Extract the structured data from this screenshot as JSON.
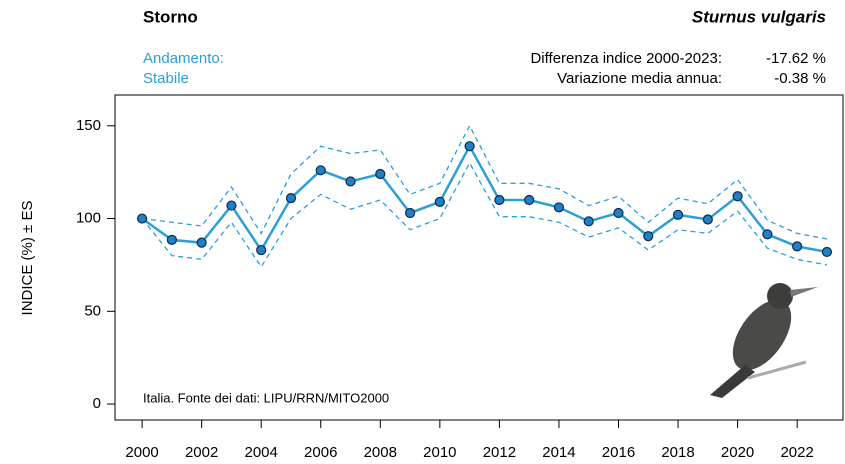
{
  "chart_data": {
    "type": "line",
    "title": "Storno",
    "species": "Sturnus vulgaris",
    "trend_label": "Andamento:",
    "trend": "Stabile",
    "stats": [
      {
        "label": "Differenza indice 2000-2023:",
        "value": "-17.62 %"
      },
      {
        "label": "Variazione media annua:",
        "value": "-0.38 %"
      }
    ],
    "y_label": "INDICE (%) ± ES",
    "annotation": "Italia. Fonte dei dati: LIPU/RRN/MITO2000",
    "x": [
      2000,
      2001,
      2002,
      2003,
      2004,
      2005,
      2006,
      2007,
      2008,
      2009,
      2010,
      2011,
      2012,
      2013,
      2014,
      2015,
      2016,
      2017,
      2018,
      2019,
      2020,
      2021,
      2022,
      2023
    ],
    "values": [
      100,
      88.5,
      87,
      107,
      83,
      111,
      126,
      120,
      124,
      103,
      109,
      139,
      110,
      110,
      106,
      98.5,
      103,
      90.5,
      102,
      99.5,
      112,
      91.5,
      85,
      82
    ],
    "upper": [
      100,
      98,
      96,
      117,
      92,
      124,
      139,
      135,
      137,
      113,
      119,
      150,
      119,
      119,
      116,
      107,
      112,
      98,
      111,
      108,
      121,
      99,
      92,
      89
    ],
    "lower": [
      100,
      80,
      78,
      98,
      74,
      100,
      113,
      105,
      110,
      94,
      100,
      130,
      101,
      101,
      98,
      90,
      95,
      83,
      94,
      92,
      104,
      84,
      78,
      75
    ],
    "color": "#2a9fd8",
    "marker_color": "#1f7fc8",
    "xlim": [
      1999.09,
      2023.54
    ],
    "ylim": [
      -8.6,
      166.6
    ],
    "xticks": [
      2000,
      2002,
      2004,
      2006,
      2008,
      2010,
      2012,
      2014,
      2016,
      2018,
      2020,
      2022
    ],
    "yticks": [
      0,
      50,
      100,
      150
    ]
  }
}
